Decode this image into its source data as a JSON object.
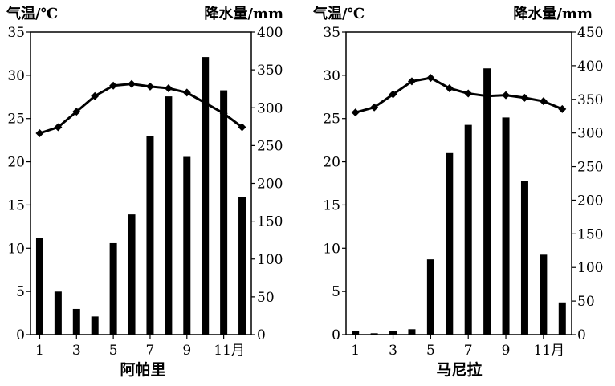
{
  "chart_data": [
    {
      "type": "bar+line",
      "title": "阿帕里",
      "left_axis_label": "气温/℃",
      "right_axis_label": "降水量/mm",
      "temp_ylim": [
        0,
        35
      ],
      "temp_ticks": [
        0,
        5,
        10,
        15,
        20,
        25,
        30,
        35
      ],
      "precip_ylim": [
        0,
        400
      ],
      "precip_ticks": [
        0,
        50,
        100,
        150,
        200,
        250,
        300,
        350,
        400
      ],
      "x": [
        1,
        2,
        3,
        4,
        5,
        6,
        7,
        8,
        9,
        10,
        11,
        12
      ],
      "x_tick_labels": [
        "1",
        "3",
        "5",
        "7",
        "9",
        "11月"
      ],
      "temperature": [
        23.3,
        24.0,
        25.8,
        27.6,
        28.8,
        29.0,
        28.7,
        28.5,
        28.0,
        26.8,
        25.6,
        24.0
      ],
      "precipitation": [
        128,
        57,
        34,
        24,
        121,
        159,
        263,
        315,
        235,
        367,
        323,
        182
      ],
      "grid": false
    },
    {
      "type": "bar+line",
      "title": "马尼拉",
      "left_axis_label": "气温/℃",
      "right_axis_label": "降水量/mm",
      "temp_ylim": [
        0,
        35
      ],
      "temp_ticks": [
        0,
        5,
        10,
        15,
        20,
        25,
        30,
        35
      ],
      "precip_ylim": [
        0,
        450
      ],
      "precip_ticks": [
        0,
        50,
        100,
        150,
        200,
        250,
        300,
        350,
        400,
        450
      ],
      "x": [
        1,
        2,
        3,
        4,
        5,
        6,
        7,
        8,
        9,
        10,
        11,
        12
      ],
      "x_tick_labels": [
        "1",
        "3",
        "5",
        "7",
        "9",
        "11月"
      ],
      "temperature": [
        25.7,
        26.3,
        27.8,
        29.3,
        29.7,
        28.5,
        27.9,
        27.6,
        27.7,
        27.4,
        27.0,
        26.1
      ],
      "precipitation": [
        5,
        2,
        5,
        8,
        112,
        270,
        312,
        396,
        323,
        229,
        119,
        48
      ],
      "grid": false
    }
  ]
}
